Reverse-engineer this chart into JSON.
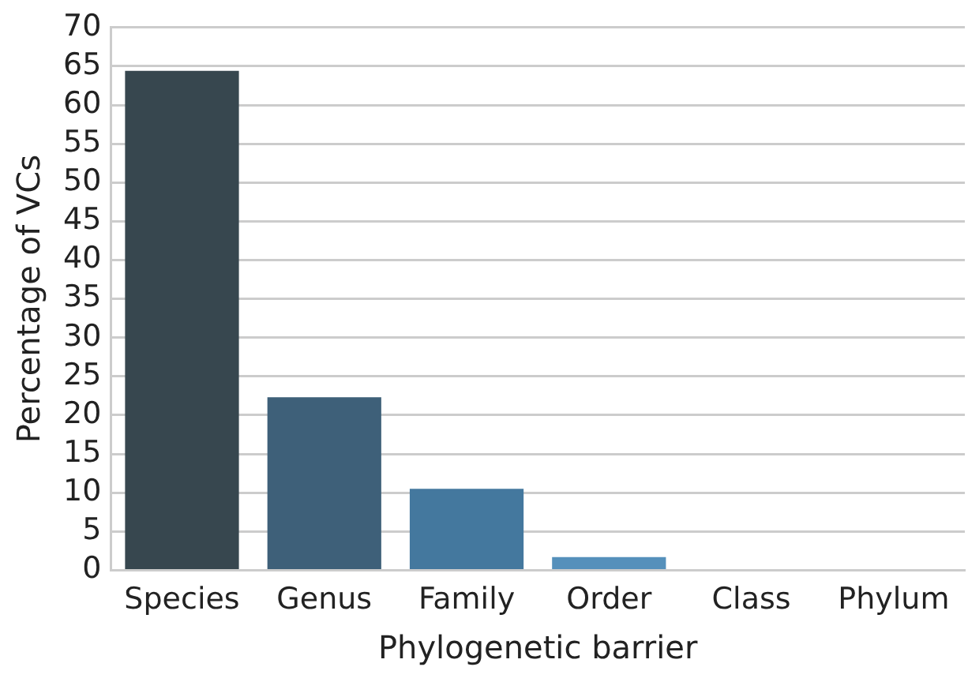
{
  "chart_data": {
    "type": "bar",
    "xlabel": "Phylogenetic barrier",
    "ylabel": "Percentage of VCs",
    "categories": [
      "Species",
      "Genus",
      "Family",
      "Order",
      "Class",
      "Phylum"
    ],
    "values": [
      64.4,
      22.3,
      10.5,
      1.7,
      0,
      0
    ],
    "colors": [
      "#37474f",
      "#3e6079",
      "#44789e",
      "#5590bb",
      "#6ba8d4",
      "#8cc0e4"
    ],
    "ylim": [
      0,
      70
    ],
    "yticks": [
      0,
      5,
      10,
      15,
      20,
      25,
      30,
      35,
      40,
      45,
      50,
      55,
      60,
      65,
      70
    ],
    "grid": "y",
    "legend": false
  }
}
